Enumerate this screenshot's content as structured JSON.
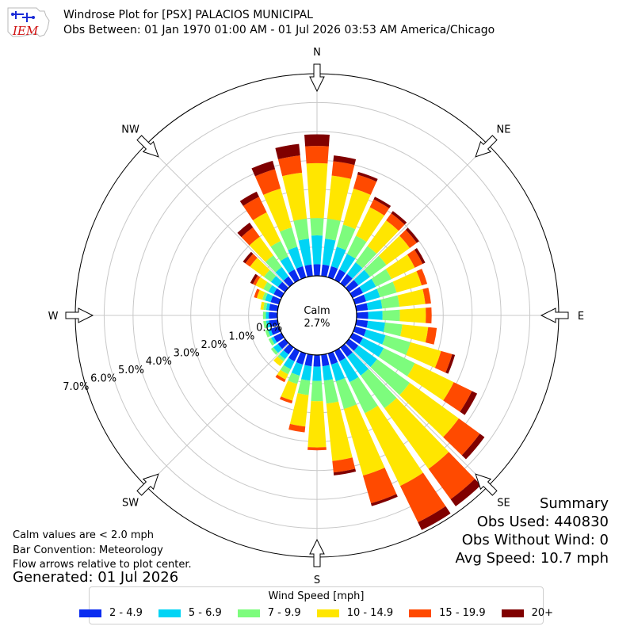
{
  "header": {
    "title_line1": "Windrose Plot for [PSX] PALACIOS MUNICIPAL",
    "title_line2": "Obs Between: 01 Jan 1970 01:00 AM - 01 Jul 2026 03:53 AM America/Chicago",
    "logo_text": "IEM"
  },
  "notes": {
    "calm_note": "Calm values are < 2.0 mph",
    "bar_convention": "Bar Convention: Meteorology",
    "flow_note": "Flow arrows relative to plot center.",
    "generated": "Generated: 01 Jul 2026"
  },
  "summary": {
    "title": "Summary",
    "obs_used": "Obs Used: 440830",
    "obs_without_wind": "Obs Without Wind: 0",
    "avg_speed": "Avg Speed: 10.7 mph"
  },
  "legend": {
    "title": "Wind Speed [mph]",
    "items": [
      {
        "label": "2 - 4.9",
        "color": "#0a2cf0"
      },
      {
        "label": "5 - 6.9",
        "color": "#00d4f5"
      },
      {
        "label": "7 - 9.9",
        "color": "#7dfc7d"
      },
      {
        "label": "10 - 14.9",
        "color": "#ffe600"
      },
      {
        "label": "15 - 19.9",
        "color": "#ff4a00"
      },
      {
        "label": "20+",
        "color": "#800000"
      }
    ]
  },
  "chart_data": {
    "type": "windrose",
    "calm": {
      "label": "Calm",
      "value": "2.7%"
    },
    "radial_ticks": [
      "0.0%",
      "1.0%",
      "2.0%",
      "3.0%",
      "4.0%",
      "5.0%",
      "6.0%",
      "7.0%"
    ],
    "radial_tick_values": [
      0,
      1,
      2,
      3,
      4,
      5,
      6,
      7
    ],
    "compass_labels": [
      "N",
      "NE",
      "E",
      "SE",
      "S",
      "SW",
      "W",
      "NW"
    ],
    "directions_deg": [
      0,
      10,
      20,
      30,
      40,
      50,
      60,
      70,
      80,
      90,
      100,
      110,
      120,
      130,
      140,
      150,
      160,
      170,
      180,
      190,
      200,
      210,
      220,
      230,
      240,
      250,
      260,
      270,
      280,
      290,
      300,
      310,
      320,
      330,
      340,
      350
    ],
    "bins": [
      "2 - 4.9",
      "5 - 6.9",
      "7 - 9.9",
      "10 - 14.9",
      "15 - 19.9",
      "20+"
    ],
    "cumulative_percent": [
      [
        0.4,
        1.4,
        2.0,
        3.9,
        4.5,
        4.9
      ],
      [
        0.4,
        1.3,
        2.0,
        3.5,
        4.0,
        4.2
      ],
      [
        0.4,
        1.1,
        1.9,
        3.2,
        3.7,
        3.8
      ],
      [
        0.4,
        1.0,
        1.7,
        2.8,
        3.1,
        3.2
      ],
      [
        0.4,
        0.9,
        1.6,
        2.7,
        3.0,
        3.1
      ],
      [
        0.4,
        0.9,
        1.6,
        2.6,
        2.9,
        3.0
      ],
      [
        0.4,
        0.9,
        1.5,
        2.4,
        2.7,
        2.8
      ],
      [
        0.4,
        0.9,
        1.5,
        2.4,
        2.6,
        2.6
      ],
      [
        0.4,
        0.9,
        1.5,
        2.4,
        2.6,
        2.6
      ],
      [
        0.4,
        0.9,
        1.5,
        2.4,
        2.6,
        2.6
      ],
      [
        0.4,
        1.0,
        1.6,
        2.5,
        2.8,
        2.8
      ],
      [
        0.4,
        1.1,
        2.0,
        3.1,
        3.5,
        3.6
      ],
      [
        0.4,
        1.2,
        2.4,
        3.9,
        4.6,
        4.8
      ],
      [
        0.4,
        1.2,
        2.6,
        4.7,
        5.6,
        5.8
      ],
      [
        0.4,
        1.2,
        2.6,
        5.2,
        6.5,
        6.8
      ],
      [
        0.4,
        1.2,
        2.4,
        5.2,
        6.6,
        6.9
      ],
      [
        0.4,
        1.0,
        2.0,
        4.4,
        5.4,
        5.5
      ],
      [
        0.4,
        0.9,
        1.7,
        3.7,
        4.1,
        4.2
      ],
      [
        0.4,
        0.9,
        1.6,
        3.2,
        3.3,
        3.3
      ],
      [
        0.4,
        0.9,
        1.4,
        2.5,
        2.7,
        2.7
      ],
      [
        0.4,
        0.8,
        1.1,
        1.7,
        1.8,
        1.8
      ],
      [
        0.4,
        0.7,
        0.9,
        1.1,
        1.2,
        1.2
      ],
      [
        0.3,
        0.5,
        0.6,
        0.8,
        0.8,
        0.8
      ],
      [
        0.3,
        0.5,
        0.6,
        0.6,
        0.6,
        0.6
      ],
      [
        0.3,
        0.4,
        0.5,
        0.5,
        0.5,
        0.5
      ],
      [
        0.3,
        0.4,
        0.5,
        0.5,
        0.5,
        0.5
      ],
      [
        0.3,
        0.4,
        0.5,
        0.5,
        0.5,
        0.5
      ],
      [
        0.3,
        0.4,
        0.5,
        0.5,
        0.5,
        0.5
      ],
      [
        0.3,
        0.4,
        0.5,
        0.6,
        0.6,
        0.6
      ],
      [
        0.3,
        0.5,
        0.6,
        0.8,
        0.9,
        0.9
      ],
      [
        0.3,
        0.5,
        0.7,
        1.0,
        1.1,
        1.2
      ],
      [
        0.3,
        0.6,
        0.9,
        1.5,
        1.7,
        1.8
      ],
      [
        0.3,
        0.7,
        1.2,
        2.0,
        2.4,
        2.6
      ],
      [
        0.4,
        0.9,
        1.5,
        2.6,
        3.2,
        3.4
      ],
      [
        0.4,
        1.1,
        1.8,
        3.2,
        3.9,
        4.2
      ],
      [
        0.4,
        1.3,
        2.0,
        3.6,
        4.2,
        4.6
      ]
    ],
    "grid": true
  }
}
